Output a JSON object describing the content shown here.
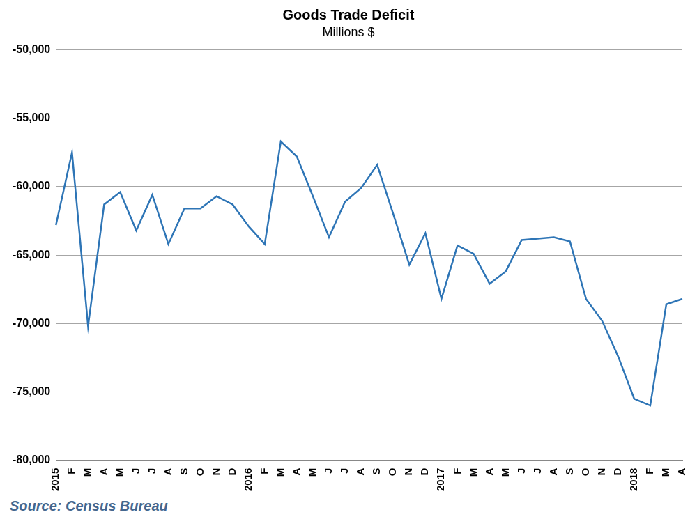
{
  "chart_data": {
    "type": "line",
    "title": "Goods Trade Deficit",
    "subtitle": "Millions $",
    "source": "Source: Census Bureau",
    "categories": [
      "2015",
      "F",
      "M",
      "A",
      "M",
      "J",
      "J",
      "A",
      "S",
      "O",
      "N",
      "D",
      "2016",
      "F",
      "M",
      "A",
      "M",
      "J",
      "J",
      "A",
      "S",
      "O",
      "N",
      "D",
      "2017",
      "F",
      "M",
      "A",
      "M",
      "J",
      "J",
      "A",
      "S",
      "O",
      "N",
      "D",
      "2018",
      "F",
      "M",
      "A"
    ],
    "values": [
      -62800,
      -57500,
      -70200,
      -61300,
      -60400,
      -63200,
      -60600,
      -64200,
      -61600,
      -61600,
      -60700,
      -61300,
      -62900,
      -64200,
      -56700,
      -57800,
      -60700,
      -63700,
      -61100,
      -60100,
      -58400,
      -62000,
      -65700,
      -63400,
      -68200,
      -64300,
      -64900,
      -67100,
      -66200,
      -63900,
      -63800,
      -63700,
      -64000,
      -68200,
      -69800,
      -72400,
      -75500,
      -76000,
      -68600,
      -68200
    ],
    "color": "#2e75b6",
    "ylim": [
      -80000,
      -50000
    ],
    "yticks": [
      {
        "value": -80000,
        "label": "-80,000"
      },
      {
        "value": -75000,
        "label": "-75,000"
      },
      {
        "value": -70000,
        "label": "-70,000"
      },
      {
        "value": -65000,
        "label": "-65,000"
      },
      {
        "value": -60000,
        "label": "-60,000"
      },
      {
        "value": -55000,
        "label": "-55,000"
      },
      {
        "value": -50000,
        "label": "-50,000"
      }
    ],
    "grid": true
  }
}
